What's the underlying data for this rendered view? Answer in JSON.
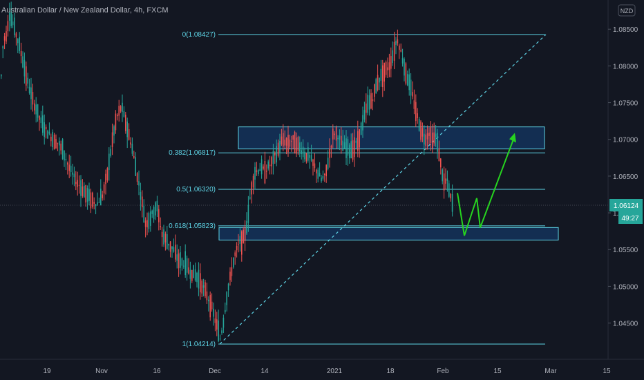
{
  "header": {
    "title": "Australian Dollar / New Zealand Dollar, 4h, FXCM",
    "currency_badge": "NZD"
  },
  "colors": {
    "background": "#131722",
    "up_candle": "#26a69a",
    "down_candle": "#ef5350",
    "fib_line": "#5ed4e6",
    "zone_fill": "#14325a",
    "projection": "#26d41f",
    "price_badge": "#26a69a"
  },
  "chart_data": {
    "type": "candlestick",
    "symbol": "AUDNZD",
    "timeframe": "4h",
    "ylim": [
      1.0405,
      1.0885
    ],
    "y_ticks": [
      1.045,
      1.05,
      1.055,
      1.06,
      1.065,
      1.07,
      1.075,
      1.08,
      1.085
    ],
    "y_tick_labels": [
      "1.04500",
      "1.05000",
      "1.05500",
      "1.06000",
      "1.06500",
      "1.07000",
      "1.07500",
      "1.08000",
      "1.08500"
    ],
    "x_ticks": [
      "19",
      "Nov",
      "16",
      "Dec",
      "14",
      "2021",
      "18",
      "Feb",
      "15",
      "Mar",
      "15"
    ],
    "price_path": [
      [
        0,
        1.077
      ],
      [
        4,
        1.0835
      ],
      [
        8,
        1.0842
      ],
      [
        13,
        1.087
      ],
      [
        17,
        1.086
      ],
      [
        22,
        1.0845
      ],
      [
        28,
        1.0825
      ],
      [
        34,
        1.08
      ],
      [
        40,
        1.0775
      ],
      [
        46,
        1.0755
      ],
      [
        52,
        1.074
      ],
      [
        60,
        1.072
      ],
      [
        68,
        1.071
      ],
      [
        76,
        1.07
      ],
      [
        84,
        1.0695
      ],
      [
        92,
        1.068
      ],
      [
        100,
        1.066
      ],
      [
        108,
        1.0645
      ],
      [
        116,
        1.0635
      ],
      [
        124,
        1.0625
      ],
      [
        132,
        1.0618
      ],
      [
        140,
        1.0612
      ],
      [
        148,
        1.0625
      ],
      [
        155,
        1.0655
      ],
      [
        162,
        1.07
      ],
      [
        168,
        1.073
      ],
      [
        175,
        1.0745
      ],
      [
        182,
        1.072
      ],
      [
        190,
        1.069
      ],
      [
        196,
        1.066
      ],
      [
        202,
        1.063
      ],
      [
        210,
        1.0585
      ],
      [
        218,
        1.0595
      ],
      [
        226,
        1.061
      ],
      [
        234,
        1.057
      ],
      [
        242,
        1.056
      ],
      [
        250,
        1.055
      ],
      [
        258,
        1.0535
      ],
      [
        266,
        1.053
      ],
      [
        274,
        1.052
      ],
      [
        282,
        1.0515
      ],
      [
        290,
        1.0505
      ],
      [
        298,
        1.049
      ],
      [
        306,
        1.047
      ],
      [
        312,
        1.045
      ],
      [
        318,
        1.0428
      ],
      [
        323,
        1.0455
      ],
      [
        328,
        1.049
      ],
      [
        334,
        1.052
      ],
      [
        340,
        1.0545
      ],
      [
        346,
        1.056
      ],
      [
        352,
        1.0565
      ],
      [
        358,
        1.059
      ],
      [
        362,
        1.063
      ],
      [
        368,
        1.0655
      ],
      [
        376,
        1.066
      ],
      [
        384,
        1.0658
      ],
      [
        392,
        1.0668
      ],
      [
        400,
        1.0682
      ],
      [
        408,
        1.07
      ],
      [
        416,
        1.0695
      ],
      [
        424,
        1.07
      ],
      [
        432,
        1.069
      ],
      [
        440,
        1.068
      ],
      [
        448,
        1.0675
      ],
      [
        456,
        1.066
      ],
      [
        464,
        1.0645
      ],
      [
        470,
        1.065
      ],
      [
        476,
        1.068
      ],
      [
        482,
        1.071
      ],
      [
        488,
        1.0705
      ],
      [
        496,
        1.069
      ],
      [
        504,
        1.0685
      ],
      [
        512,
        1.069
      ],
      [
        518,
        1.07
      ],
      [
        524,
        1.072
      ],
      [
        530,
        1.0745
      ],
      [
        538,
        1.0755
      ],
      [
        546,
        1.078
      ],
      [
        554,
        1.079
      ],
      [
        562,
        1.08
      ],
      [
        568,
        1.0815
      ],
      [
        574,
        1.0838
      ],
      [
        578,
        1.0825
      ],
      [
        584,
        1.08
      ],
      [
        590,
        1.078
      ],
      [
        596,
        1.076
      ],
      [
        602,
        1.0735
      ],
      [
        608,
        1.0715
      ],
      [
        614,
        1.07
      ],
      [
        620,
        1.071
      ],
      [
        626,
        1.07
      ],
      [
        630,
        1.0705
      ],
      [
        634,
        1.0685
      ],
      [
        638,
        1.066
      ],
      [
        642,
        1.064
      ],
      [
        646,
        1.0645
      ],
      [
        650,
        1.0625
      ],
      [
        654,
        1.0612
      ]
    ],
    "fibonacci": [
      {
        "label": "0(1.08427)",
        "value": 1.08427
      },
      {
        "label": "0.382(1.06817)",
        "value": 1.06817
      },
      {
        "label": "0.5(1.06320)",
        "value": 1.0632
      },
      {
        "label": "0.618(1.05823)",
        "value": 1.05823
      },
      {
        "label": "1(1.04214)",
        "value": 1.04214
      }
    ],
    "zones": [
      {
        "name": "resistance-zone",
        "top": 1.0717,
        "bottom": 1.0687
      },
      {
        "name": "support-zone",
        "top": 1.058,
        "bottom": 1.0563
      }
    ],
    "projection_path": [
      [
        662,
        1.0627
      ],
      [
        672,
        1.0569
      ],
      [
        690,
        1.062
      ],
      [
        695,
        1.058
      ],
      [
        745,
        1.0705
      ]
    ],
    "trend_line": [
      [
        318,
        1.04214
      ],
      [
        790,
        1.08427
      ]
    ],
    "current_price": "1.06124",
    "countdown": "49:27"
  }
}
